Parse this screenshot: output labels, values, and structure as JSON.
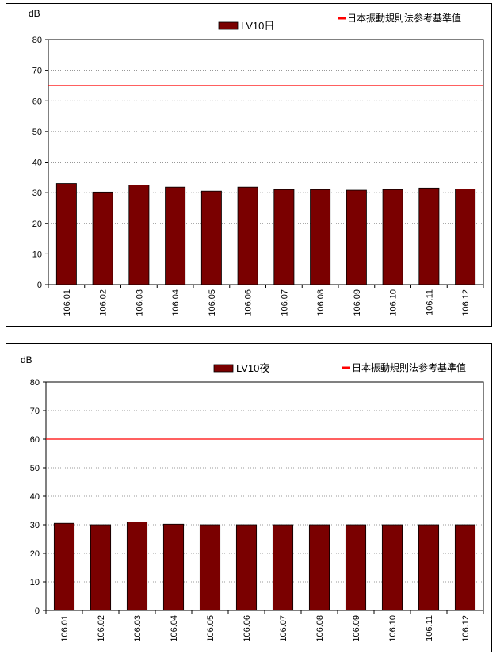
{
  "chart_data": [
    {
      "type": "bar",
      "unit_label": "dB",
      "categories": [
        "106.01",
        "106.02",
        "106.03",
        "106.04",
        "106.05",
        "106.06",
        "106.07",
        "106.08",
        "106.09",
        "106.10",
        "106.11",
        "106.12"
      ],
      "series": [
        {
          "name": "LV10日",
          "values": [
            33.0,
            30.2,
            32.5,
            31.8,
            30.5,
            31.8,
            31.0,
            31.0,
            30.8,
            31.0,
            31.5,
            31.2
          ]
        }
      ],
      "reference_line": {
        "name": "日本振動規則法参考基準值",
        "value": 65
      },
      "ylim": [
        0,
        80
      ],
      "yticks": [
        0,
        10,
        20,
        30,
        40,
        50,
        60,
        70,
        80
      ],
      "grid": "horizontal dotted",
      "legend": "top",
      "colors": {
        "bar": "#7a0000",
        "reference": "#ff0000"
      }
    },
    {
      "type": "bar",
      "unit_label": "dB",
      "categories": [
        "106.01",
        "106.02",
        "106.03",
        "106.04",
        "106.05",
        "106.06",
        "106.07",
        "106.08",
        "106.09",
        "106.10",
        "106.11",
        "106.12"
      ],
      "series": [
        {
          "name": "LV10夜",
          "values": [
            30.5,
            30.0,
            31.0,
            30.2,
            30.0,
            30.0,
            30.0,
            30.0,
            30.0,
            30.0,
            30.0,
            30.0
          ]
        }
      ],
      "reference_line": {
        "name": "日本振動規則法参考基準值",
        "value": 60
      },
      "ylim": [
        0,
        80
      ],
      "yticks": [
        0,
        10,
        20,
        30,
        40,
        50,
        60,
        70,
        80
      ],
      "grid": "horizontal dotted",
      "legend": "top",
      "colors": {
        "bar": "#7a0000",
        "reference": "#ff0000"
      }
    }
  ]
}
